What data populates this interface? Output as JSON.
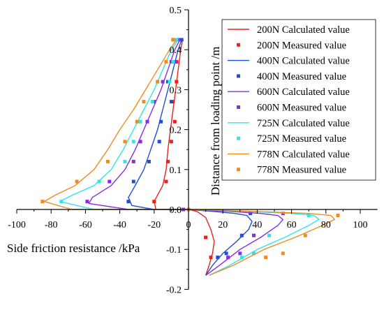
{
  "chart_data": {
    "type": "line",
    "title": "",
    "xlabel": "Side friction resistance /kPa",
    "ylabel": "Distance from loading point /m",
    "xlim": [
      -100,
      110
    ],
    "ylim": [
      -0.2,
      0.5
    ],
    "x_ticks": [
      -100,
      -80,
      -60,
      -40,
      -20,
      0,
      20,
      40,
      60,
      80,
      100
    ],
    "x_tick_labels": [
      "-100",
      "-80",
      "-60",
      "-40",
      "-20",
      "0",
      "20",
      "40",
      "60",
      "80",
      "100"
    ],
    "y_ticks": [
      -0.2,
      -0.1,
      0.0,
      0.1,
      0.2,
      0.3,
      0.4,
      0.5
    ],
    "y_tick_labels": [
      "-0.2",
      "-0.1",
      "0.0",
      "0.1",
      "0.2",
      "0.3",
      "0.4",
      "0.5"
    ],
    "grid": false,
    "legend_position": "top-right",
    "series": [
      {
        "name": "200N Calculated value",
        "kind": "line",
        "color": "#e8231e",
        "points": [
          [
            -3.5,
            0.425
          ],
          [
            -4.5,
            0.4
          ],
          [
            -6,
            0.35
          ],
          [
            -7.5,
            0.3
          ],
          [
            -9,
            0.25
          ],
          [
            -10.5,
            0.2
          ],
          [
            -12,
            0.15
          ],
          [
            -13,
            0.1
          ],
          [
            -15,
            0.06
          ],
          [
            -20,
            0.02
          ],
          [
            -19,
            0.0
          ],
          [
            -8,
            0.0
          ],
          [
            0,
            0.0
          ],
          [
            5,
            -0.005
          ],
          [
            10,
            -0.02
          ],
          [
            13,
            -0.05
          ],
          [
            15,
            -0.08
          ],
          [
            14,
            -0.11
          ],
          [
            12,
            -0.14
          ],
          [
            10,
            -0.165
          ]
        ]
      },
      {
        "name": "200N Measured value",
        "kind": "scatter",
        "color": "#e8231e",
        "points": [
          [
            -9,
            0.425
          ],
          [
            -7,
            0.37
          ],
          [
            -7,
            0.32
          ],
          [
            -9,
            0.27
          ],
          [
            -8,
            0.22
          ],
          [
            -10,
            0.17
          ],
          [
            -12,
            0.12
          ],
          [
            -13,
            0.07
          ],
          [
            -20,
            0.02
          ],
          [
            -3,
            0.0
          ],
          [
            10,
            -0.07
          ],
          [
            13,
            -0.12
          ]
        ]
      },
      {
        "name": "400N Calculated value",
        "kind": "line",
        "color": "#1f4fd0",
        "points": [
          [
            -4,
            0.425
          ],
          [
            -6,
            0.4
          ],
          [
            -9,
            0.35
          ],
          [
            -12,
            0.3
          ],
          [
            -15,
            0.25
          ],
          [
            -18,
            0.2
          ],
          [
            -22,
            0.15
          ],
          [
            -26,
            0.1
          ],
          [
            -31,
            0.06
          ],
          [
            -35,
            0.03
          ],
          [
            -33,
            0.01
          ],
          [
            -20,
            0.0
          ],
          [
            0,
            0.0
          ],
          [
            15,
            -0.005
          ],
          [
            27,
            -0.01
          ],
          [
            34,
            -0.015
          ],
          [
            37,
            -0.03
          ],
          [
            35,
            -0.05
          ],
          [
            28,
            -0.08
          ],
          [
            20,
            -0.11
          ],
          [
            14,
            -0.14
          ],
          [
            10,
            -0.165
          ]
        ]
      },
      {
        "name": "400N Measured value",
        "kind": "scatter",
        "color": "#1f4fd0",
        "points": [
          [
            -4,
            0.425
          ],
          [
            -10,
            0.37
          ],
          [
            -12,
            0.32
          ],
          [
            -10,
            0.27
          ],
          [
            -16,
            0.22
          ],
          [
            -17,
            0.17
          ],
          [
            -23,
            0.12
          ],
          [
            -32,
            0.07
          ],
          [
            -35,
            0.02
          ],
          [
            0,
            0.0
          ],
          [
            36,
            -0.01
          ],
          [
            31,
            -0.065
          ],
          [
            22,
            -0.11
          ],
          [
            17,
            -0.12
          ]
        ]
      },
      {
        "name": "600N Calculated value",
        "kind": "line",
        "color": "#8a2be2",
        "points": [
          [
            -5,
            0.425
          ],
          [
            -8,
            0.4
          ],
          [
            -12,
            0.35
          ],
          [
            -16,
            0.3
          ],
          [
            -21,
            0.25
          ],
          [
            -26,
            0.2
          ],
          [
            -31,
            0.15
          ],
          [
            -37,
            0.1
          ],
          [
            -45,
            0.06
          ],
          [
            -56,
            0.03
          ],
          [
            -58,
            0.015
          ],
          [
            -35,
            0.0
          ],
          [
            0,
            0.0
          ],
          [
            25,
            -0.005
          ],
          [
            42,
            -0.01
          ],
          [
            52,
            -0.015
          ],
          [
            55,
            -0.025
          ],
          [
            52,
            -0.04
          ],
          [
            42,
            -0.07
          ],
          [
            30,
            -0.1
          ],
          [
            18,
            -0.14
          ],
          [
            10,
            -0.165
          ]
        ]
      },
      {
        "name": "600N Measured value",
        "kind": "scatter",
        "color": "#8a2be2",
        "points": [
          [
            -6,
            0.425
          ],
          [
            -8,
            0.37
          ],
          [
            -15,
            0.32
          ],
          [
            -20,
            0.27
          ],
          [
            -24,
            0.22
          ],
          [
            -28,
            0.17
          ],
          [
            -32,
            0.12
          ],
          [
            -46,
            0.07
          ],
          [
            -59,
            0.02
          ],
          [
            -3,
            0.0
          ],
          [
            55,
            -0.01
          ],
          [
            38,
            -0.065
          ],
          [
            30,
            -0.11
          ],
          [
            23,
            -0.12
          ]
        ]
      },
      {
        "name": "725N Calculated value",
        "kind": "line",
        "color": "#2ee6e6",
        "points": [
          [
            -6,
            0.425
          ],
          [
            -10,
            0.4
          ],
          [
            -15,
            0.35
          ],
          [
            -20,
            0.3
          ],
          [
            -26,
            0.25
          ],
          [
            -32,
            0.2
          ],
          [
            -38,
            0.15
          ],
          [
            -45,
            0.1
          ],
          [
            -55,
            0.06
          ],
          [
            -68,
            0.035
          ],
          [
            -75,
            0.02
          ],
          [
            -55,
            0.0
          ],
          [
            0,
            0.0
          ],
          [
            35,
            -0.005
          ],
          [
            60,
            -0.01
          ],
          [
            73,
            -0.015
          ],
          [
            76,
            -0.025
          ],
          [
            70,
            -0.04
          ],
          [
            56,
            -0.07
          ],
          [
            40,
            -0.1
          ],
          [
            24,
            -0.14
          ],
          [
            12,
            -0.165
          ]
        ]
      },
      {
        "name": "725N Measured value",
        "kind": "scatter",
        "color": "#2ee6e6",
        "points": [
          [
            -7,
            0.425
          ],
          [
            -9,
            0.37
          ],
          [
            -11,
            0.32
          ],
          [
            -21,
            0.27
          ],
          [
            -28,
            0.22
          ],
          [
            -32,
            0.17
          ],
          [
            -37,
            0.12
          ],
          [
            -52,
            0.07
          ],
          [
            -74,
            0.02
          ],
          [
            0,
            0.0
          ],
          [
            70,
            -0.015
          ],
          [
            47,
            -0.065
          ],
          [
            38,
            -0.11
          ],
          [
            31,
            -0.12
          ]
        ]
      },
      {
        "name": "778N Calculated value",
        "kind": "line",
        "color": "#f28a1e",
        "points": [
          [
            -7,
            0.425
          ],
          [
            -11,
            0.4
          ],
          [
            -18,
            0.35
          ],
          [
            -25,
            0.3
          ],
          [
            -32,
            0.25
          ],
          [
            -40,
            0.2
          ],
          [
            -47,
            0.15
          ],
          [
            -55,
            0.1
          ],
          [
            -66,
            0.06
          ],
          [
            -78,
            0.035
          ],
          [
            -84,
            0.02
          ],
          [
            -68,
            0.0
          ],
          [
            0,
            0.0
          ],
          [
            40,
            -0.005
          ],
          [
            70,
            -0.01
          ],
          [
            83,
            -0.015
          ],
          [
            85,
            -0.025
          ],
          [
            78,
            -0.04
          ],
          [
            62,
            -0.07
          ],
          [
            44,
            -0.1
          ],
          [
            26,
            -0.14
          ],
          [
            12,
            -0.165
          ]
        ]
      },
      {
        "name": "778N Measured value",
        "kind": "scatter",
        "color": "#f28a1e",
        "points": [
          [
            -9,
            0.425
          ],
          [
            -13,
            0.37
          ],
          [
            -18,
            0.32
          ],
          [
            -26,
            0.27
          ],
          [
            -30,
            0.22
          ],
          [
            -37,
            0.17
          ],
          [
            -47,
            0.12
          ],
          [
            -65,
            0.07
          ],
          [
            -85,
            0.02
          ],
          [
            0,
            0.0
          ],
          [
            87,
            -0.015
          ],
          [
            68,
            -0.065
          ],
          [
            55,
            -0.11
          ],
          [
            45,
            -0.12
          ]
        ]
      }
    ]
  }
}
